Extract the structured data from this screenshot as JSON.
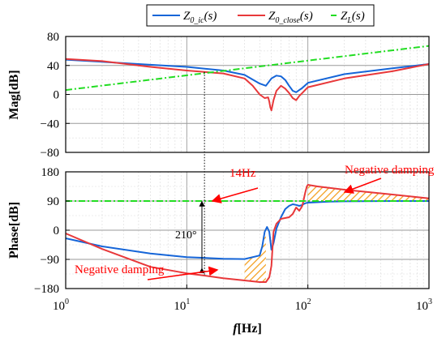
{
  "chart_data": [
    {
      "type": "line",
      "ylabel": "Mag[dB]",
      "xscale": "log",
      "xlim": [
        1,
        1000
      ],
      "ylim": [
        -80,
        80
      ],
      "yticks": [
        -80,
        -40,
        0,
        40,
        80
      ],
      "grid": true,
      "series": [
        {
          "name_main": "Z",
          "name_sub": "0_ic",
          "name_tail": "(s)",
          "color": "#1565d8",
          "style": "solid",
          "x": [
            1,
            2,
            5,
            10,
            20,
            30,
            40,
            45,
            50,
            55,
            60,
            65,
            70,
            75,
            80,
            85,
            90,
            100,
            200,
            500,
            1000
          ],
          "y": [
            48,
            45,
            41,
            38,
            33,
            27,
            15,
            12,
            22,
            26,
            25,
            20,
            12,
            5,
            3,
            6,
            9,
            16,
            28,
            36,
            42
          ]
        },
        {
          "name_main": "Z",
          "name_sub": "0_close",
          "name_tail": "(s)",
          "color": "#e8383a",
          "style": "solid",
          "x": [
            1,
            2,
            5,
            10,
            14,
            20,
            30,
            35,
            40,
            44,
            47,
            48,
            49,
            50,
            52,
            55,
            60,
            65,
            70,
            75,
            80,
            85,
            90,
            100,
            200,
            500,
            1000
          ],
          "y": [
            49,
            46,
            38,
            33,
            31,
            29,
            22,
            12,
            0,
            -5,
            -4,
            -10,
            -18,
            -22,
            -8,
            5,
            12,
            8,
            2,
            -5,
            -8,
            -2,
            2,
            10,
            22,
            32,
            42
          ]
        },
        {
          "name_main": "Z",
          "name_sub": "L",
          "name_tail": "(s)",
          "color": "#22dd22",
          "style": "dashdot",
          "x": [
            1,
            1000
          ],
          "y": [
            6,
            67
          ]
        }
      ]
    },
    {
      "type": "line",
      "xlabel_f": "f",
      "xlabel_rest": "[Hz]",
      "ylabel": "Phase[dB]",
      "xscale": "log",
      "xlim": [
        1,
        1000
      ],
      "ylim": [
        -180,
        180
      ],
      "yticks": [
        -180,
        -90,
        0,
        90,
        180
      ],
      "xticks": [
        {
          "x": 1,
          "base": "10",
          "exp": "0"
        },
        {
          "x": 10,
          "base": "10",
          "exp": "1"
        },
        {
          "x": 100,
          "base": "10",
          "exp": "2"
        },
        {
          "x": 1000,
          "base": "10",
          "exp": "3"
        }
      ],
      "grid": true,
      "series": [
        {
          "color": "#1565d8",
          "style": "solid",
          "x": [
            1,
            2,
            5,
            10,
            20,
            30,
            40,
            42,
            44,
            46,
            48,
            50,
            52,
            55,
            60,
            65,
            70,
            75,
            80,
            85,
            90,
            95,
            100,
            150,
            200,
            500,
            1000
          ],
          "y": [
            -25,
            -50,
            -72,
            -83,
            -88,
            -89,
            -78,
            -50,
            -5,
            10,
            -5,
            -60,
            -40,
            5,
            40,
            65,
            75,
            80,
            78,
            75,
            78,
            83,
            85,
            88,
            89,
            90,
            90
          ]
        },
        {
          "color": "#e8383a",
          "style": "solid",
          "x": [
            1,
            2,
            5,
            10,
            14,
            20,
            30,
            40,
            45,
            48,
            50,
            52,
            55,
            60,
            70,
            75,
            80,
            85,
            90,
            95,
            98,
            100,
            120,
            200,
            500,
            1000
          ],
          "y": [
            -10,
            -58,
            -113,
            -133,
            -140,
            -148,
            -155,
            -160,
            -160,
            -145,
            -110,
            -5,
            20,
            35,
            40,
            50,
            70,
            60,
            75,
            115,
            135,
            140,
            135,
            125,
            110,
            98
          ]
        },
        {
          "color": "#22dd22",
          "style": "dashdot",
          "x": [
            1,
            1000
          ],
          "y": [
            90,
            90
          ]
        }
      ],
      "annotations": [
        {
          "text": "14Hz",
          "x": 14
        },
        {
          "text": "210°",
          "x": 14
        },
        {
          "text": "Negative damping",
          "where": "lower-left"
        },
        {
          "text": "Negative damping",
          "where": "upper-right"
        }
      ]
    }
  ]
}
